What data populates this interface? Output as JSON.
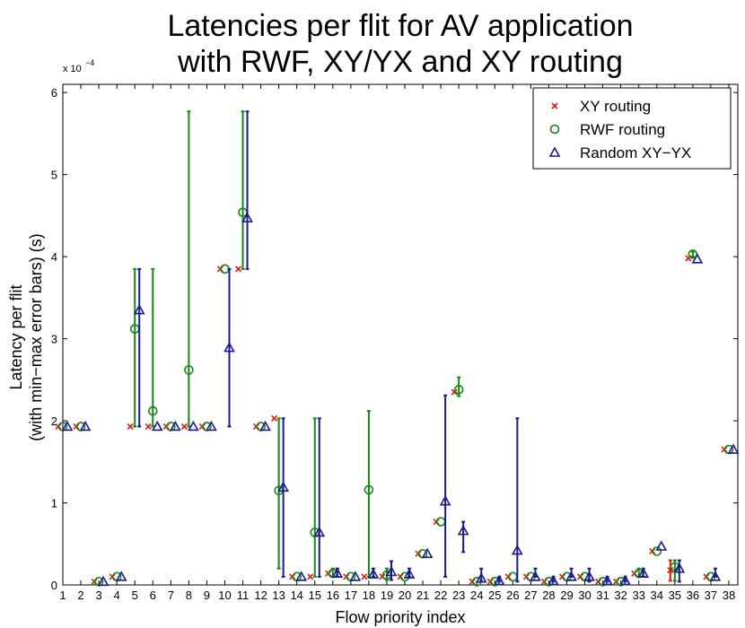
{
  "chart_data": {
    "type": "scatter",
    "title": [
      "Latencies per flit for AV application",
      "with RWF, XY/YX and XY routing"
    ],
    "xlabel": "Flow priority index",
    "ylabel": [
      "Latency per flit",
      "(with min−max error bars) (s)"
    ],
    "y_exponent": {
      "base": "x 10",
      "power": "−4"
    },
    "xlim": [
      1,
      38.5
    ],
    "ylim": [
      0,
      6.1
    ],
    "yticks": [
      0,
      1,
      2,
      3,
      4,
      5,
      6
    ],
    "xticks": [
      "1",
      "2",
      "3",
      "4",
      "5",
      "6",
      "7",
      "8",
      "9",
      "10",
      "11",
      "12",
      "13",
      "14",
      "15",
      "16",
      "17",
      "18",
      "19",
      "20",
      "21",
      "22",
      "23",
      "24",
      "25",
      "26",
      "27",
      "28",
      "29",
      "30",
      "31",
      "32",
      "33",
      "34",
      "35",
      "36",
      "37",
      "38"
    ],
    "series": [
      {
        "name": "XY routing",
        "marker": "x",
        "color": "#e8120c",
        "values": [
          1.93,
          1.93,
          0.04,
          0.1,
          1.93,
          1.93,
          1.93,
          1.93,
          1.93,
          3.85,
          3.85,
          1.93,
          2.03,
          0.1,
          0.1,
          0.14,
          0.1,
          0.1,
          0.1,
          0.1,
          0.38,
          0.77,
          2.35,
          0.04,
          0.04,
          0.1,
          0.1,
          0.04,
          0.1,
          0.1,
          0.04,
          0.04,
          0.14,
          0.41,
          0.18,
          3.98,
          0.1,
          1.65
        ],
        "err_min": [
          1.93,
          1.93,
          0.04,
          0.1,
          1.93,
          1.93,
          1.93,
          1.93,
          1.93,
          3.85,
          3.85,
          1.93,
          2.03,
          0.1,
          0.1,
          0.14,
          0.1,
          0.1,
          0.1,
          0.1,
          0.38,
          0.77,
          2.35,
          0.04,
          0.04,
          0.1,
          0.1,
          0.04,
          0.1,
          0.1,
          0.04,
          0.04,
          0.14,
          0.41,
          0.05,
          3.98,
          0.1,
          1.65
        ],
        "err_max": [
          1.93,
          1.93,
          0.04,
          0.1,
          1.93,
          1.93,
          1.93,
          1.93,
          1.93,
          3.85,
          3.85,
          1.93,
          2.03,
          0.1,
          0.1,
          0.14,
          0.1,
          0.1,
          0.1,
          0.1,
          0.38,
          0.77,
          2.35,
          0.04,
          0.04,
          0.1,
          0.1,
          0.04,
          0.1,
          0.1,
          0.04,
          0.04,
          0.14,
          0.41,
          0.3,
          3.98,
          0.1,
          1.65
        ]
      },
      {
        "name": "RWF routing",
        "marker": "o",
        "color": "#138a13",
        "values": [
          1.93,
          1.93,
          0.04,
          0.1,
          3.12,
          2.12,
          1.93,
          2.62,
          1.93,
          3.85,
          4.54,
          1.93,
          1.15,
          0.1,
          0.64,
          0.14,
          0.1,
          1.16,
          0.12,
          0.1,
          0.38,
          0.77,
          2.38,
          0.04,
          0.04,
          0.1,
          0.1,
          0.04,
          0.1,
          0.1,
          0.04,
          0.04,
          0.14,
          0.41,
          0.22,
          4.03,
          0.1,
          1.65
        ],
        "err_min": [
          1.93,
          1.93,
          0.04,
          0.1,
          1.93,
          1.93,
          1.93,
          1.93,
          1.93,
          3.85,
          3.85,
          1.93,
          0.2,
          0.1,
          0.1,
          0.1,
          0.1,
          0.1,
          0.06,
          0.1,
          0.38,
          0.77,
          2.3,
          0.04,
          0.04,
          0.1,
          0.1,
          0.04,
          0.1,
          0.1,
          0.04,
          0.04,
          0.1,
          0.41,
          0.05,
          4.0,
          0.1,
          1.65
        ],
        "err_max": [
          1.93,
          1.93,
          0.04,
          0.1,
          3.85,
          3.85,
          1.93,
          5.77,
          1.93,
          3.85,
          5.77,
          1.93,
          2.03,
          0.1,
          2.03,
          0.2,
          0.1,
          2.12,
          0.2,
          0.1,
          0.38,
          0.77,
          2.53,
          0.04,
          0.04,
          0.1,
          0.1,
          0.04,
          0.1,
          0.1,
          0.04,
          0.04,
          0.2,
          0.41,
          0.3,
          4.06,
          0.1,
          1.65
        ]
      },
      {
        "name": "Random XY−YX",
        "marker": "^",
        "color": "#1a1a8e",
        "values": [
          1.93,
          1.93,
          0.04,
          0.1,
          3.35,
          1.93,
          1.93,
          1.93,
          1.93,
          2.89,
          4.47,
          1.93,
          1.19,
          0.1,
          0.64,
          0.14,
          0.1,
          0.13,
          0.16,
          0.13,
          0.38,
          1.02,
          0.66,
          0.08,
          0.05,
          0.42,
          0.1,
          0.05,
          0.1,
          0.1,
          0.05,
          0.05,
          0.14,
          0.47,
          0.2,
          3.97,
          0.1,
          1.65
        ],
        "err_min": [
          1.93,
          1.93,
          0.04,
          0.1,
          1.93,
          1.93,
          1.93,
          1.93,
          1.93,
          1.93,
          3.85,
          1.93,
          0.1,
          0.1,
          0.1,
          0.1,
          0.1,
          0.1,
          0.06,
          0.1,
          0.38,
          0.1,
          0.4,
          0.04,
          0.04,
          0.04,
          0.1,
          0.04,
          0.1,
          0.04,
          0.04,
          0.04,
          0.1,
          0.47,
          0.04,
          3.97,
          0.1,
          1.65
        ],
        "err_max": [
          1.93,
          1.93,
          0.04,
          0.1,
          3.85,
          1.93,
          1.93,
          1.93,
          1.93,
          3.85,
          5.77,
          1.93,
          2.03,
          0.1,
          2.03,
          0.2,
          0.1,
          0.2,
          0.29,
          0.2,
          0.38,
          2.31,
          0.77,
          0.2,
          0.1,
          2.03,
          0.2,
          0.1,
          0.2,
          0.2,
          0.1,
          0.1,
          0.2,
          0.47,
          0.3,
          3.97,
          0.2,
          1.65
        ]
      }
    ],
    "legend_position": "top-right"
  }
}
